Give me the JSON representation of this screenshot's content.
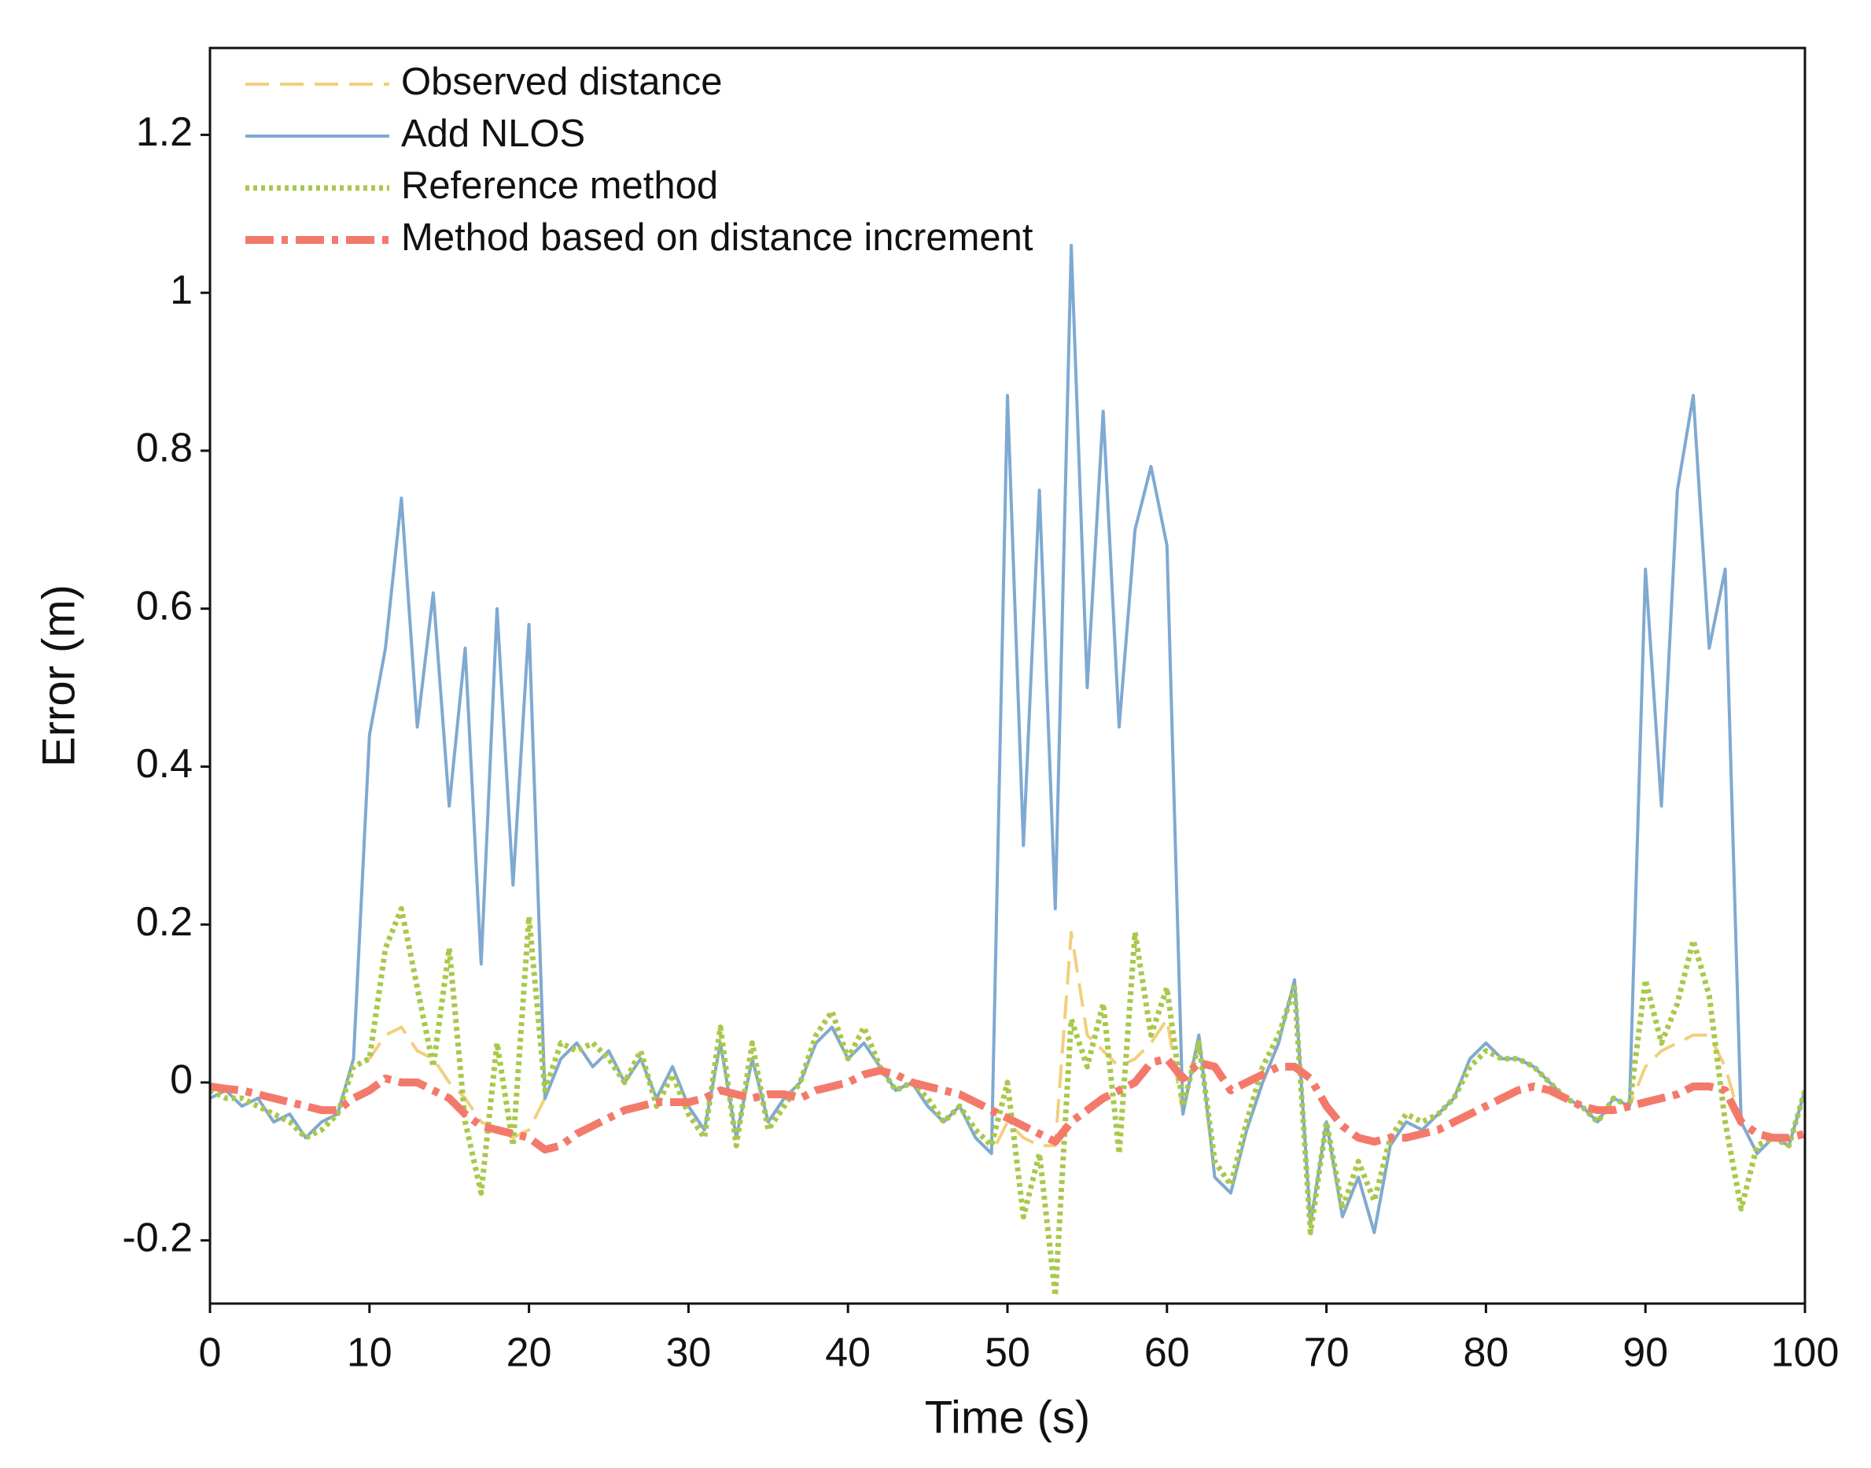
{
  "chart_data": {
    "type": "line",
    "xlabel": "Time (s)",
    "ylabel": "Error (m)",
    "x": [
      0,
      1,
      2,
      3,
      4,
      5,
      6,
      7,
      8,
      9,
      10,
      11,
      12,
      13,
      14,
      15,
      16,
      17,
      18,
      19,
      20,
      21,
      22,
      23,
      24,
      25,
      26,
      27,
      28,
      29,
      30,
      31,
      32,
      33,
      34,
      35,
      36,
      37,
      38,
      39,
      40,
      41,
      42,
      43,
      44,
      45,
      46,
      47,
      48,
      49,
      50,
      51,
      52,
      53,
      54,
      55,
      56,
      57,
      58,
      59,
      60,
      61,
      62,
      63,
      64,
      65,
      66,
      67,
      68,
      69,
      70,
      71,
      72,
      73,
      74,
      75,
      76,
      77,
      78,
      79,
      80,
      81,
      82,
      83,
      84,
      85,
      86,
      87,
      88,
      89,
      90,
      91,
      92,
      93,
      94,
      95,
      96,
      97,
      98,
      99,
      100
    ],
    "series": [
      {
        "name": "Observed distance",
        "color": "#f2cf7c",
        "dash": "dashed",
        "values": [
          -0.02,
          -0.01,
          -0.03,
          -0.02,
          -0.05,
          -0.04,
          -0.07,
          -0.05,
          -0.04,
          0.03,
          0.03,
          0.06,
          0.07,
          0.04,
          0.03,
          0.0,
          -0.02,
          -0.05,
          -0.06,
          -0.07,
          -0.06,
          -0.02,
          0.03,
          0.05,
          0.02,
          0.04,
          0.0,
          0.03,
          -0.02,
          0.02,
          -0.03,
          -0.06,
          0.05,
          -0.07,
          0.03,
          -0.05,
          -0.02,
          0.0,
          0.05,
          0.07,
          0.03,
          0.05,
          0.02,
          -0.01,
          0.0,
          -0.03,
          -0.05,
          -0.03,
          -0.07,
          -0.09,
          -0.05,
          -0.07,
          -0.08,
          -0.08,
          0.19,
          0.06,
          0.04,
          0.02,
          0.03,
          0.05,
          0.08,
          -0.04,
          0.06,
          -0.12,
          -0.14,
          -0.06,
          0.0,
          0.05,
          0.13,
          -0.18,
          -0.05,
          -0.17,
          -0.12,
          -0.19,
          -0.08,
          -0.05,
          -0.06,
          -0.04,
          -0.02,
          0.03,
          0.05,
          0.03,
          0.03,
          0.02,
          0.0,
          -0.02,
          -0.03,
          -0.05,
          -0.02,
          -0.03,
          0.02,
          0.04,
          0.05,
          0.06,
          0.06,
          0.02,
          -0.05,
          -0.09,
          -0.07,
          -0.08,
          -0.01
        ]
      },
      {
        "name": "Add NLOS",
        "color": "#7fa9d1",
        "dash": "solid",
        "values": [
          -0.02,
          -0.01,
          -0.03,
          -0.02,
          -0.05,
          -0.04,
          -0.07,
          -0.05,
          -0.04,
          0.03,
          0.44,
          0.55,
          0.74,
          0.45,
          0.62,
          0.35,
          0.55,
          0.15,
          0.6,
          0.25,
          0.58,
          -0.02,
          0.03,
          0.05,
          0.02,
          0.04,
          0.0,
          0.03,
          -0.02,
          0.02,
          -0.03,
          -0.06,
          0.05,
          -0.07,
          0.03,
          -0.05,
          -0.02,
          0.0,
          0.05,
          0.07,
          0.03,
          0.05,
          0.02,
          -0.01,
          0.0,
          -0.03,
          -0.05,
          -0.03,
          -0.07,
          -0.09,
          0.87,
          0.3,
          0.75,
          0.22,
          1.06,
          0.5,
          0.85,
          0.45,
          0.7,
          0.78,
          0.68,
          -0.04,
          0.06,
          -0.12,
          -0.14,
          -0.06,
          0.0,
          0.05,
          0.13,
          -0.18,
          -0.05,
          -0.17,
          -0.12,
          -0.19,
          -0.08,
          -0.05,
          -0.06,
          -0.04,
          -0.02,
          0.03,
          0.05,
          0.03,
          0.03,
          0.02,
          0.0,
          -0.02,
          -0.03,
          -0.05,
          -0.02,
          -0.03,
          0.65,
          0.35,
          0.75,
          0.87,
          0.55,
          0.65,
          -0.05,
          -0.09,
          -0.07,
          -0.08,
          -0.01
        ]
      },
      {
        "name": "Reference method",
        "color": "#a9c84b",
        "dash": "dotted",
        "values": [
          -0.01,
          -0.02,
          -0.02,
          -0.03,
          -0.04,
          -0.05,
          -0.07,
          -0.06,
          -0.04,
          0.02,
          0.03,
          0.17,
          0.22,
          0.12,
          0.02,
          0.17,
          -0.05,
          -0.14,
          0.05,
          -0.08,
          0.21,
          -0.01,
          0.05,
          0.04,
          0.05,
          0.03,
          0.0,
          0.04,
          -0.03,
          0.01,
          -0.04,
          -0.07,
          0.07,
          -0.08,
          0.05,
          -0.06,
          -0.03,
          0.0,
          0.06,
          0.09,
          0.03,
          0.07,
          0.02,
          -0.01,
          0.0,
          -0.02,
          -0.05,
          -0.03,
          -0.06,
          -0.08,
          0.0,
          -0.17,
          -0.09,
          -0.27,
          0.08,
          0.02,
          0.1,
          -0.09,
          0.19,
          0.06,
          0.12,
          -0.03,
          0.05,
          -0.1,
          -0.13,
          -0.05,
          0.02,
          0.06,
          0.12,
          -0.19,
          -0.05,
          -0.16,
          -0.1,
          -0.15,
          -0.07,
          -0.04,
          -0.05,
          -0.04,
          -0.02,
          0.02,
          0.04,
          0.03,
          0.03,
          0.02,
          0.0,
          -0.02,
          -0.03,
          -0.05,
          -0.02,
          -0.03,
          0.13,
          0.05,
          0.1,
          0.18,
          0.11,
          -0.05,
          -0.16,
          -0.08,
          -0.07,
          -0.08,
          -0.01
        ]
      },
      {
        "name": "Method based on distance increment",
        "color": "#f37a6b",
        "dash": "dashdot",
        "values": [
          -0.005,
          -0.008,
          -0.01,
          -0.015,
          -0.02,
          -0.025,
          -0.03,
          -0.035,
          -0.035,
          -0.02,
          -0.01,
          0.005,
          0.0,
          0.0,
          -0.01,
          -0.02,
          -0.04,
          -0.055,
          -0.06,
          -0.065,
          -0.07,
          -0.085,
          -0.08,
          -0.065,
          -0.055,
          -0.045,
          -0.035,
          -0.03,
          -0.025,
          -0.025,
          -0.025,
          -0.02,
          -0.01,
          -0.015,
          -0.02,
          -0.015,
          -0.015,
          -0.02,
          -0.01,
          -0.005,
          0.0,
          0.01,
          0.015,
          0.01,
          0.0,
          -0.005,
          -0.01,
          -0.015,
          -0.025,
          -0.035,
          -0.045,
          -0.055,
          -0.065,
          -0.075,
          -0.05,
          -0.035,
          -0.02,
          -0.01,
          0.0,
          0.025,
          0.03,
          0.005,
          0.025,
          0.02,
          -0.01,
          0.0,
          0.01,
          0.02,
          0.02,
          0.005,
          -0.03,
          -0.055,
          -0.07,
          -0.075,
          -0.07,
          -0.07,
          -0.065,
          -0.06,
          -0.05,
          -0.04,
          -0.03,
          -0.02,
          -0.01,
          -0.005,
          -0.01,
          -0.02,
          -0.03,
          -0.035,
          -0.035,
          -0.03,
          -0.025,
          -0.02,
          -0.015,
          -0.005,
          -0.005,
          -0.01,
          -0.05,
          -0.065,
          -0.07,
          -0.07,
          -0.065
        ]
      }
    ],
    "xlim": [
      0,
      100
    ],
    "xticks": [
      0,
      10,
      20,
      30,
      40,
      50,
      60,
      70,
      80,
      90,
      100
    ],
    "ylim": [
      -0.28,
      1.31
    ],
    "yticks": [
      -0.2,
      0,
      0.2,
      0.4,
      0.6,
      0.8,
      1,
      1.2
    ],
    "grid": false,
    "legend": "upper left"
  }
}
